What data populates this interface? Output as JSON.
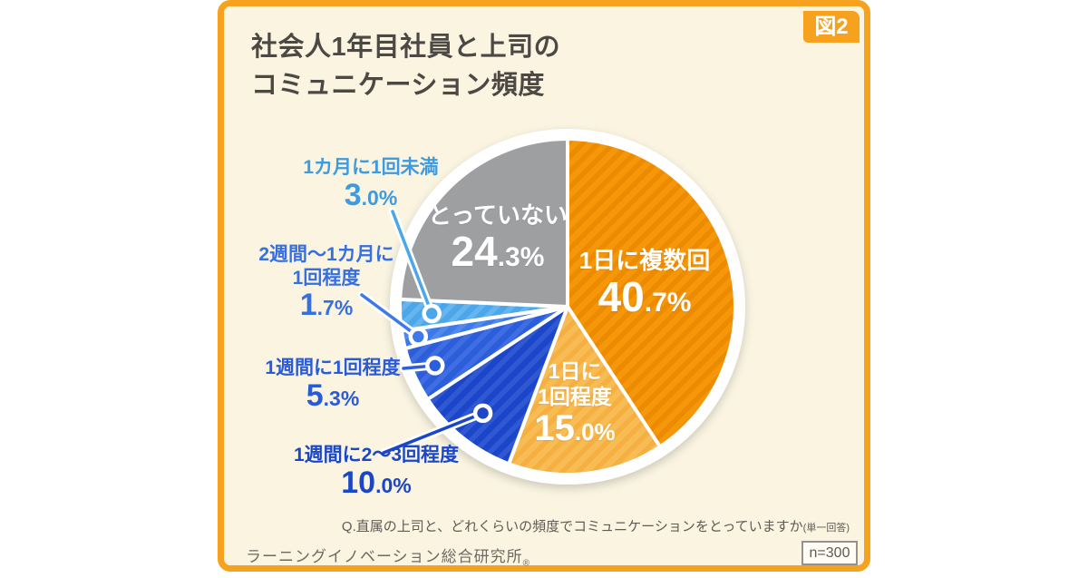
{
  "figure_tag": "図2",
  "title_lines": [
    "社会人1年目社員と上司の",
    "コミュニケーション頻度"
  ],
  "question": "Q.直属の上司と、どれくらいの頻度でコミュニケーションをとっていますか",
  "question_note": "(単一回答)",
  "source": "ラーニングイノベーション総合研究所",
  "source_mark": "®",
  "sample_size": "n=300",
  "colors": {
    "page_bg": "#FFFFFF",
    "card_bg": "#FAF4E1",
    "card_border": "#F6A21E",
    "title": "#4C4944",
    "footnote": "#5F5B55",
    "source": "#6E6A62",
    "pie_rim": "#FFFFFF"
  },
  "chart_data": {
    "type": "pie",
    "title": "社会人1年目社員と上司のコミュニケーション頻度",
    "start_angle_deg": 0,
    "direction": "clockwise",
    "total": 100,
    "sample_size": 300,
    "slices": [
      {
        "label": "1日に複数回",
        "value": 40.7,
        "value_int": "40",
        "value_dec": ".7%",
        "color": "#F59708",
        "stripe_color": "#EC8B00",
        "text_color": "#FFFFFF",
        "label_position": "inside"
      },
      {
        "label": "1日に1回程度",
        "label_lines": [
          "1日に",
          "1回程度"
        ],
        "value": 15.0,
        "value_int": "15",
        "value_dec": ".0%",
        "color": "#F8BC55",
        "stripe_color": "#F5B041",
        "text_color": "#FFFFFF",
        "label_position": "inside"
      },
      {
        "label": "1週間に2〜3回程度",
        "value": 10.0,
        "value_int": "10",
        "value_dec": ".0%",
        "color": "#1B46C9",
        "stripe_color": "#2F58D2",
        "text_color": "#1A46C8",
        "label_position": "outside"
      },
      {
        "label": "1週間に1回程度",
        "value": 5.3,
        "value_int": "5",
        "value_dec": ".3%",
        "color": "#2C5EDB",
        "stripe_color": "#3F6EE2",
        "text_color": "#2A5BD7",
        "label_position": "outside"
      },
      {
        "label": "2週間〜1カ月に1回程度",
        "label_lines": [
          "2週間〜1カ月に",
          "1回程度"
        ],
        "value": 1.7,
        "value_int": "1",
        "value_dec": ".7%",
        "color": "#3D79E9",
        "stripe_color": "#5189EE",
        "text_color": "#366FE0",
        "label_position": "outside"
      },
      {
        "label": "1カ月に1回未満",
        "value": 3.0,
        "value_int": "3",
        "value_dec": ".0%",
        "color": "#4BA6EA",
        "stripe_color": "#66B5EF",
        "text_color": "#3F9BDD",
        "label_position": "outside"
      },
      {
        "label": "とっていない",
        "value": 24.3,
        "value_int": "24",
        "value_dec": ".3%",
        "color": "#9D9FA0",
        "stripe_color": null,
        "text_color": "#FFFFFF",
        "label_position": "inside"
      }
    ]
  }
}
